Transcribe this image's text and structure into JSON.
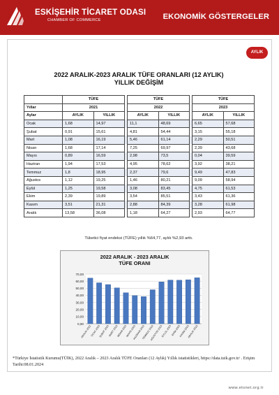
{
  "header": {
    "org_name": "ESKİŞEHİR TİCARET ODASI",
    "org_sub": "CHAMBER OF COMMERCE",
    "section_title": "EKONOMİK GÖSTERGELER",
    "badge": "AYLIK",
    "brand_color": "#b31b1b"
  },
  "page": {
    "title_line1": "2022 ARALIK-2023 ARALIK TÜFE ORANLARI (12 AYLIK)",
    "title_line2": "YILLIK DEĞİŞİM",
    "note": "Tüketici fiyat endeksi (TÜFE) yıllık %64,77, aylık %2,93 arttı.",
    "footnote": "*Türkiye İstatistik Kurumu(TÜİK), 2022 Aralık – 2023 Aralık TÜFE Oranları (12 Aylık) Yıllık istatistikleri, https://data.tuik.gov.tr/ . Erişim Tarihi:08.01.2024",
    "url": "www.etonet.org.tr"
  },
  "table": {
    "group_label": "TÜFE",
    "years_label": "Yıllar",
    "months_label": "Aylar",
    "years": [
      "2021",
      "2022",
      "2023"
    ],
    "sub_headers": [
      "AYLIK",
      "YILLIK"
    ],
    "rows": [
      {
        "month": "Ocak",
        "v": [
          "1,68",
          "14,97",
          "11,1",
          "48,69",
          "6,65",
          "57,68"
        ]
      },
      {
        "month": "Şubat",
        "v": [
          "0,91",
          "15,61",
          "4,81",
          "54,44",
          "3,15",
          "55,18"
        ]
      },
      {
        "month": "Mart",
        "v": [
          "1,08",
          "16,19",
          "5,46",
          "61,14",
          "2,29",
          "50,51"
        ]
      },
      {
        "month": "Nisan",
        "v": [
          "1,68",
          "17,14",
          "7,25",
          "69,97",
          "2,39",
          "43,68"
        ]
      },
      {
        "month": "Mayıs",
        "v": [
          "0,89",
          "16,59",
          "2,98",
          "73,5",
          "0,04",
          "39,59"
        ]
      },
      {
        "month": "Haziran",
        "v": [
          "1,94",
          "17,53",
          "4,95",
          "78,62",
          "3,92",
          "38,21"
        ]
      },
      {
        "month": "Temmuz",
        "v": [
          "1,8",
          "18,95",
          "2,37",
          "79,6",
          "9,49",
          "47,83"
        ]
      },
      {
        "month": "Ağustos",
        "v": [
          "1,12",
          "19,25",
          "1,46",
          "80,21",
          "9,09",
          "58,94"
        ]
      },
      {
        "month": "Eylül",
        "v": [
          "1,25",
          "19,58",
          "3,08",
          "83,45",
          "4,75",
          "61,53"
        ]
      },
      {
        "month": "Ekim",
        "v": [
          "2,39",
          "19,89",
          "3,54",
          "85,51",
          "3,43",
          "61,36"
        ]
      },
      {
        "month": "Kasım",
        "v": [
          "3,51",
          "21,31",
          "2,88",
          "84,39",
          "3,28",
          "61,98"
        ]
      },
      {
        "month": "Aralık",
        "v": [
          "13,58",
          "36,08",
          "1,18",
          "64,27",
          "2,93",
          "64,77"
        ]
      }
    ]
  },
  "chart_data": {
    "type": "bar",
    "title": "2022 ARALIK - 2023 ARALIK",
    "subtitle": "TÜFE ORANI",
    "categories": [
      "ARALIK 2022",
      "OCAK 2023",
      "ŞUBAT 2023",
      "MART 2023",
      "NİSAN 2023",
      "MAYIS 2023",
      "HAZİRAN 2023",
      "TEMMUZ 2023",
      "AĞUSTOS 2023",
      "EYLÜL 2023",
      "EKİM 2023",
      "KASIM 2023",
      "ARALIK 2023"
    ],
    "values": [
      64.27,
      57.68,
      55.18,
      50.51,
      43.68,
      39.59,
      38.21,
      47.83,
      58.94,
      61.53,
      61.36,
      61.98,
      64.77
    ],
    "yticks": [
      "0,00",
      "10,00",
      "20,00",
      "30,00",
      "40,00",
      "50,00",
      "60,00",
      "70,00"
    ],
    "ylim": [
      0,
      70
    ],
    "bar_color": "#4a78c0",
    "grid": true
  }
}
